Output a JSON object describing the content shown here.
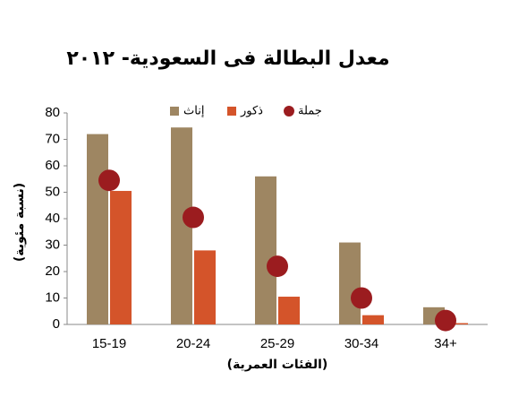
{
  "chart_data": {
    "type": "bar",
    "title": "معدل البطالة فى السعودية- ٢٠١٢",
    "y_label": "(نسبة مئوية)",
    "x_label": "(الفئات العمرية)",
    "categories": [
      "15-19",
      "20-24",
      "25-29",
      "30-34",
      "34+"
    ],
    "series": [
      {
        "name": "إناث",
        "color": "#9e8662",
        "values": [
          72,
          74.5,
          56,
          31,
          6.5
        ]
      },
      {
        "name": "ذكور",
        "color": "#d4542a",
        "values": [
          50.5,
          28,
          10.5,
          3.5,
          0.5
        ]
      },
      {
        "name": "جملة",
        "color": "#9b1c1f",
        "type": "dot",
        "values": [
          54.5,
          40.5,
          22,
          10,
          1.5
        ]
      }
    ],
    "ylim": [
      0,
      80
    ],
    "yticks": [
      0,
      10,
      20,
      30,
      40,
      50,
      60,
      70,
      80
    ],
    "grid": false,
    "legend": "top"
  }
}
